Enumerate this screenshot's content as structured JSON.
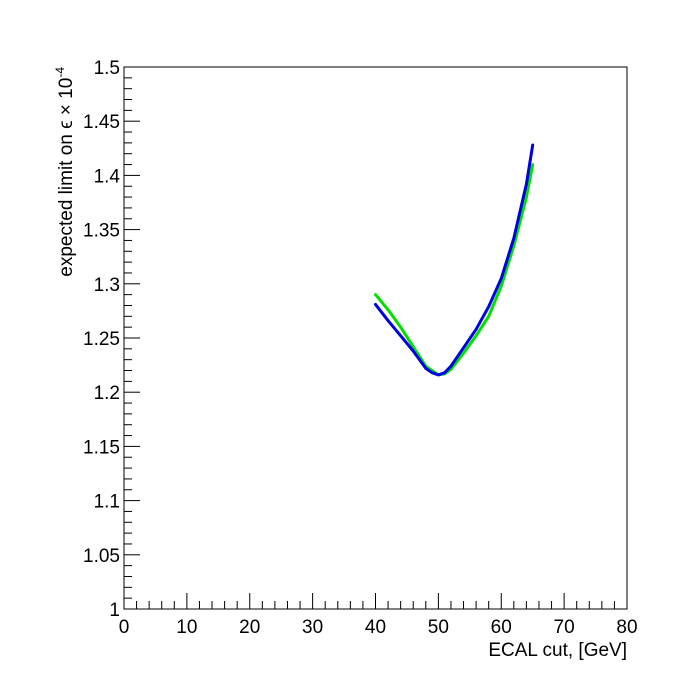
{
  "chart_data": {
    "type": "line",
    "title": "",
    "xlabel": "ECAL cut, [GeV]",
    "ylabel": {
      "prefix": "expected limit on ϵ × 10",
      "exponent": "-4"
    },
    "xlim": [
      0,
      80
    ],
    "ylim": [
      1.0,
      1.5
    ],
    "xticks": [
      "0",
      "10",
      "20",
      "30",
      "40",
      "50",
      "60",
      "70",
      "80"
    ],
    "yticks": [
      "1",
      "1.05",
      "1.1",
      "1.15",
      "1.2",
      "1.25",
      "1.3",
      "1.35",
      "1.4",
      "1.45",
      "1.5"
    ],
    "grid": false,
    "series": [
      {
        "color": "#00e000",
        "x": [
          40,
          42,
          44,
          46,
          48,
          50,
          51,
          52,
          54,
          56,
          58,
          60,
          62,
          64,
          65
        ],
        "y": [
          1.29,
          1.276,
          1.26,
          1.242,
          1.224,
          1.216,
          1.217,
          1.221,
          1.236,
          1.252,
          1.27,
          1.298,
          1.335,
          1.38,
          1.41
        ]
      },
      {
        "color": "#0000e0",
        "x": [
          40,
          42,
          44,
          46,
          48,
          49,
          50,
          51,
          52,
          54,
          56,
          58,
          60,
          62,
          64,
          65
        ],
        "y": [
          1.281,
          1.266,
          1.252,
          1.238,
          1.222,
          1.218,
          1.216,
          1.218,
          1.224,
          1.241,
          1.258,
          1.279,
          1.305,
          1.342,
          1.392,
          1.428
        ]
      }
    ]
  }
}
